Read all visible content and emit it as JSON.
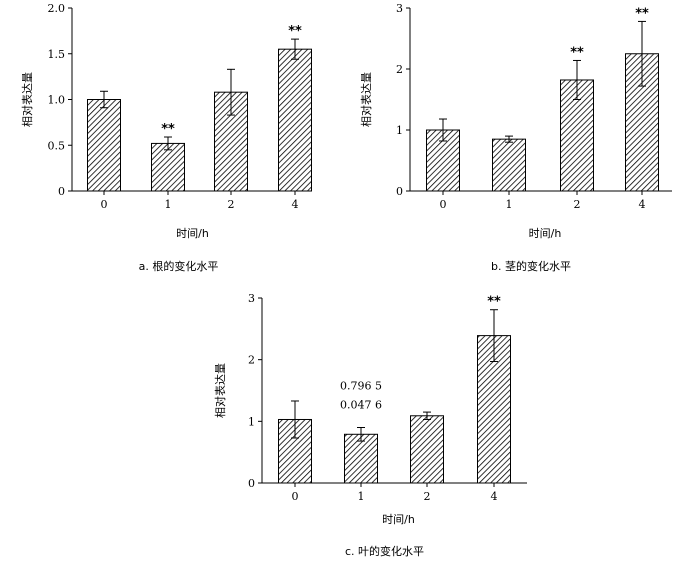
{
  "chart_data": [
    {
      "type": "bar",
      "caption": "a. 根的变化水平",
      "xlabel": "时间/h",
      "ylabel": "相对表达量",
      "categories": [
        "0",
        "1",
        "2",
        "4"
      ],
      "values": [
        1.0,
        0.52,
        1.08,
        1.55
      ],
      "errors": [
        0.09,
        0.07,
        0.25,
        0.11
      ],
      "significance": [
        "",
        "**",
        "",
        "**"
      ],
      "ylim": [
        0,
        2.0
      ],
      "yticks": [
        "0",
        "0.5",
        "1.0",
        "1.5",
        "2.0"
      ],
      "ytick_values": [
        0,
        0.5,
        1.0,
        1.5,
        2.0
      ],
      "annotations": []
    },
    {
      "type": "bar",
      "caption": "b. 茎的变化水平",
      "xlabel": "时间/h",
      "ylabel": "相对表达量",
      "categories": [
        "0",
        "1",
        "2",
        "4"
      ],
      "values": [
        1.0,
        0.85,
        1.82,
        2.25
      ],
      "errors": [
        0.18,
        0.05,
        0.32,
        0.53
      ],
      "significance": [
        "",
        "",
        "**",
        "**"
      ],
      "ylim": [
        0,
        3
      ],
      "yticks": [
        "0",
        "1",
        "2",
        "3"
      ],
      "ytick_values": [
        0,
        1,
        2,
        3
      ],
      "annotations": []
    },
    {
      "type": "bar",
      "caption": "c. 叶的变化水平",
      "xlabel": "时间/h",
      "ylabel": "相对表达量",
      "categories": [
        "0",
        "1",
        "2",
        "4"
      ],
      "values": [
        1.03,
        0.79,
        1.09,
        2.39
      ],
      "errors": [
        0.3,
        0.11,
        0.06,
        0.42
      ],
      "significance": [
        "",
        "",
        "",
        "**"
      ],
      "ylim": [
        0,
        3
      ],
      "yticks": [
        "0",
        "1",
        "2",
        "3"
      ],
      "ytick_values": [
        0,
        1,
        2,
        3
      ],
      "annotations": [
        "0.796 5",
        "0.047 6"
      ]
    }
  ]
}
